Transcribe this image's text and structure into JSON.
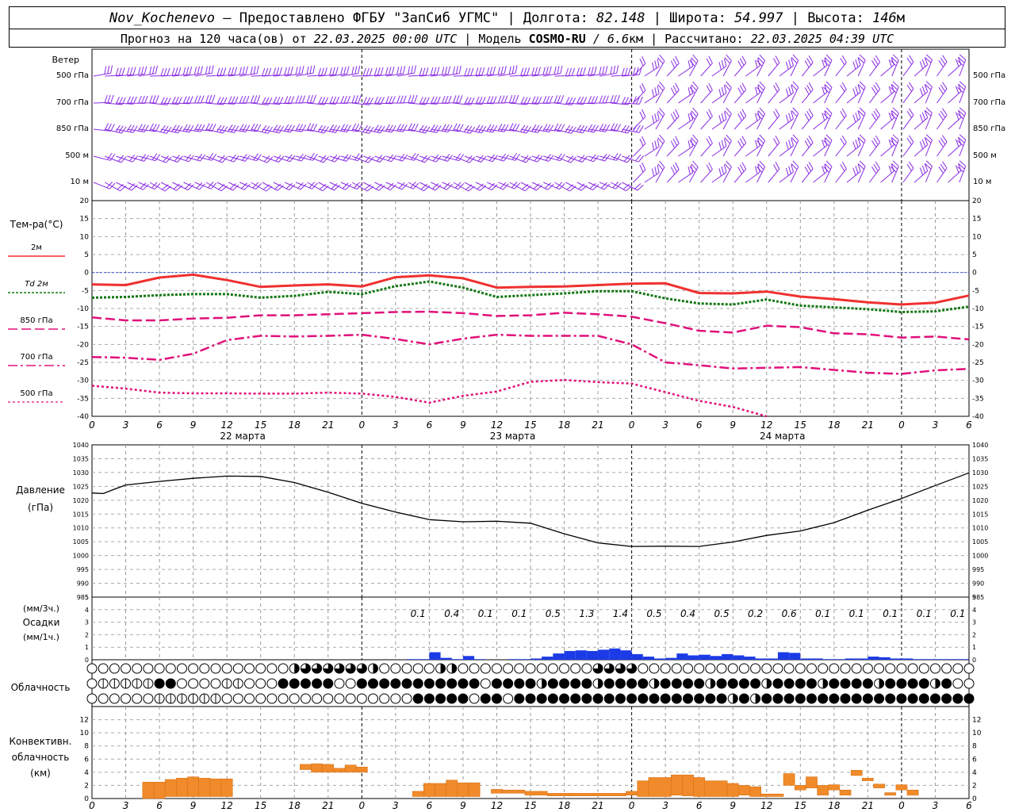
{
  "header": {
    "station": "Nov_Kochenevo",
    "provider": " – Предоставлено ФГБУ \"ЗапСиб УГМС\" | Долгота: ",
    "lon": "82.148",
    "lat_label": " | Широта: ",
    "lat": "54.997",
    "alt_label": " | Высота: ",
    "alt": "146",
    "alt_unit": "м",
    "forecast_label": "Прогноз на 120 часа(ов) от ",
    "forecast_start": "22.03.2025 00:00 UTC",
    "model_label": "  | Модель ",
    "model": "COSMO-RU",
    "model_res": " / 6.6",
    "model_unit": "км",
    "calc_label": " | Рассчитано: ",
    "calc_time": "22.03.2025 04:39 UTC"
  },
  "wind_panel": {
    "title": "Ветер",
    "levels": [
      "500 гПа",
      "700 гПа",
      "850 гПа",
      "500 м",
      "10  м"
    ]
  },
  "temp_panel": {
    "title": "Тем-ра(°С)",
    "legend": [
      {
        "label": "2м",
        "color": "#f03030"
      },
      {
        "label": "Td  2м",
        "color": "#117711"
      },
      {
        "label": "850 гПа",
        "color": "#e0107a"
      },
      {
        "label": "700 гПа",
        "color": "#e0107a"
      },
      {
        "label": "500 гПа",
        "color": "#e0107a"
      }
    ]
  },
  "pressure_panel": {
    "title1": "Давление",
    "title2": "(гПа)"
  },
  "precip_panel": {
    "title1": "(мм/3ч.)",
    "title2": "Осадки",
    "title3": "(мм/1ч.)"
  },
  "cloud_panel": {
    "title": "Облачность"
  },
  "conv_panel": {
    "title1": "Конвективн.",
    "title2": "облачность",
    "title3": "(км)"
  },
  "x_ticks": [
    "0",
    "3",
    "6",
    "9",
    "12",
    "15",
    "18",
    "21",
    "0",
    "3",
    "6",
    "9",
    "12",
    "15",
    "18",
    "21",
    "0",
    "3",
    "6",
    "9",
    "12",
    "15",
    "18",
    "21",
    "0",
    "3",
    "6"
  ],
  "dates": [
    "22 марта",
    "23 марта",
    "24 марта"
  ],
  "chart_data": [
    {
      "type": "line",
      "id": "temperature",
      "x_hours": [
        0,
        3,
        6,
        9,
        12,
        15,
        18,
        21,
        24,
        27,
        30,
        33,
        36,
        39,
        42,
        45,
        48,
        51,
        54,
        57,
        60,
        63,
        66,
        69,
        72,
        75,
        78
      ],
      "ylim": [
        -40,
        20
      ],
      "yticks": [
        -40,
        -35,
        -30,
        -25,
        -20,
        -15,
        -10,
        -5,
        0,
        5,
        10,
        15,
        20
      ],
      "series": [
        {
          "name": "2м",
          "color": "#f03030",
          "values": [
            -3.3,
            -3.5,
            -1.4,
            -0.6,
            -2.1,
            -4.0,
            -3.6,
            -3.3,
            -3.9,
            -1.3,
            -0.8,
            -1.6,
            -4.2,
            -4.0,
            -3.9,
            -3.5,
            -3.1,
            -3.0,
            -5.7,
            -5.8,
            -5.3,
            -6.7,
            -7.4,
            -8.3,
            -8.9,
            -8.4,
            -6.4
          ]
        },
        {
          "name": "Td  2м",
          "color": "#117711",
          "values": [
            -7.0,
            -6.8,
            -6.3,
            -6.0,
            -6.0,
            -7.0,
            -6.5,
            -5.4,
            -6.0,
            -3.8,
            -2.5,
            -4.2,
            -6.8,
            -6.3,
            -5.8,
            -5.2,
            -5.2,
            -7.2,
            -8.6,
            -8.9,
            -7.5,
            -9.2,
            -9.7,
            -10.2,
            -11.0,
            -10.8,
            -9.5
          ]
        },
        {
          "name": "850 гПа",
          "color": "#e0107a",
          "values": [
            -12.5,
            -13.3,
            -13.3,
            -12.8,
            -12.6,
            -11.9,
            -11.9,
            -11.6,
            -11.3,
            -11.0,
            -10.9,
            -11.3,
            -12.1,
            -11.9,
            -11.2,
            -11.6,
            -12.3,
            -14.1,
            -16.2,
            -16.7,
            -14.8,
            -15.2,
            -16.9,
            -17.2,
            -18.1,
            -17.8,
            -18.6
          ]
        },
        {
          "name": "700 гПа",
          "color": "#e0107a",
          "values": [
            -23.5,
            -23.7,
            -24.3,
            -22.6,
            -18.8,
            -17.6,
            -17.8,
            -17.6,
            -17.3,
            -18.5,
            -20.0,
            -18.4,
            -17.3,
            -17.6,
            -17.6,
            -17.6,
            -20.0,
            -25.0,
            -25.8,
            -26.7,
            -26.5,
            -26.3,
            -27.1,
            -27.9,
            -28.2,
            -27.2,
            -26.8
          ]
        },
        {
          "name": "500 гПа",
          "color": "#e0107a",
          "values": [
            -31.5,
            -32.3,
            -33.4,
            -33.6,
            -33.6,
            -33.7,
            -33.7,
            -33.4,
            -33.7,
            -34.6,
            -36.2,
            -34.3,
            -33.1,
            -30.4,
            -29.9,
            -30.5,
            -30.9,
            -33.3,
            -35.7,
            -37.4,
            -40.0,
            null,
            null,
            null,
            null,
            null,
            null
          ]
        }
      ]
    },
    {
      "type": "line",
      "id": "pressure",
      "x_hours": [
        0,
        1,
        2,
        3,
        6,
        9,
        12,
        15,
        18,
        21,
        24,
        27,
        30,
        33,
        36,
        39,
        42,
        45,
        48,
        51,
        54,
        57,
        60,
        63,
        66,
        69,
        72,
        75,
        78
      ],
      "ylim": [
        985,
        1040
      ],
      "yticks": [
        985,
        990,
        995,
        1000,
        1005,
        1010,
        1015,
        1020,
        1025,
        1030,
        1035,
        1040
      ],
      "series": [
        {
          "name": "",
          "color": "#000000",
          "values": [
            1022.6,
            1022.4,
            1024.0,
            1025.5,
            1026.8,
            1027.9,
            1028.7,
            1028.6,
            1026.4,
            1022.9,
            1018.9,
            1015.7,
            1013.0,
            1012.2,
            1012.4,
            1011.7,
            1007.9,
            1004.6,
            1003.3,
            1003.4,
            1003.3,
            1004.9,
            1007.3,
            1008.9,
            1011.9,
            1016.4,
            1020.6,
            1025.3,
            1029.9
          ]
        }
      ]
    },
    {
      "type": "bar",
      "id": "precipitation",
      "ylim": [
        0,
        5
      ],
      "yticks": [
        0,
        1,
        2,
        3,
        4,
        5
      ],
      "labels_3h": [
        "0.1",
        "0.4",
        "0.1",
        "0.1",
        "0.5",
        "1.3",
        "1.4",
        "0.5",
        "0.4",
        "0.5",
        "0.2",
        "0.6",
        "0.1",
        "0.1",
        "0.1",
        "0.1",
        "0.1"
      ],
      "labels_3h_hours": [
        29,
        32,
        35,
        38,
        41,
        44,
        47,
        50,
        53,
        56,
        59,
        62,
        65,
        68,
        71,
        74,
        77
      ],
      "hourly_x": [
        29,
        30,
        31,
        32,
        33,
        34,
        35,
        36,
        37,
        38,
        39,
        40,
        41,
        42,
        43,
        44,
        45,
        46,
        47,
        48,
        49,
        50,
        51,
        52,
        53,
        54,
        55,
        56,
        57,
        58,
        59,
        60,
        61,
        62,
        63,
        64,
        65,
        66,
        67,
        68,
        69,
        70,
        71,
        72,
        73,
        74,
        75,
        76,
        77,
        78
      ],
      "hourly_values": [
        0.05,
        0.05,
        0.6,
        0.15,
        0.05,
        0.3,
        0.05,
        0.0,
        0.0,
        0.05,
        0.05,
        0.1,
        0.25,
        0.5,
        0.7,
        0.75,
        0.7,
        0.8,
        0.9,
        0.75,
        0.45,
        0.25,
        0.1,
        0.15,
        0.5,
        0.35,
        0.4,
        0.3,
        0.45,
        0.35,
        0.25,
        0.1,
        0.1,
        0.6,
        0.55,
        0.1,
        0.1,
        0.05,
        0.05,
        0.1,
        0.1,
        0.25,
        0.2,
        0.1,
        0.1,
        0.05,
        0.05,
        0.05,
        0.05,
        0.05
      ]
    },
    {
      "type": "bar",
      "id": "convective_cloud",
      "ylim": [
        0,
        14
      ],
      "yticks": [
        0,
        2,
        4,
        6,
        8,
        10,
        12
      ],
      "segments": [
        {
          "x0": 4.5,
          "x1": 5.5,
          "base": 0,
          "top": 2.5
        },
        {
          "x0": 5.5,
          "x1": 6.5,
          "base": 0,
          "top": 2.5
        },
        {
          "x0": 6.5,
          "x1": 7.5,
          "base": 0.3,
          "top": 2.9
        },
        {
          "x0": 7.5,
          "x1": 8.5,
          "base": 0.3,
          "top": 3.1
        },
        {
          "x0": 8.5,
          "x1": 9.5,
          "base": 0.3,
          "top": 3.3
        },
        {
          "x0": 9.5,
          "x1": 10.5,
          "base": 0.3,
          "top": 3.1
        },
        {
          "x0": 10.5,
          "x1": 11.5,
          "base": 0.3,
          "top": 3.0
        },
        {
          "x0": 11.5,
          "x1": 12.5,
          "base": 0.3,
          "top": 3.0
        },
        {
          "x0": 18.5,
          "x1": 19.5,
          "base": 4.4,
          "top": 5.2
        },
        {
          "x0": 19.5,
          "x1": 20.5,
          "base": 4.0,
          "top": 5.3
        },
        {
          "x0": 20.5,
          "x1": 21.5,
          "base": 4.0,
          "top": 5.2
        },
        {
          "x0": 21.5,
          "x1": 22.5,
          "base": 4.0,
          "top": 4.6
        },
        {
          "x0": 22.5,
          "x1": 23.5,
          "base": 4.0,
          "top": 5.1
        },
        {
          "x0": 23.5,
          "x1": 24.5,
          "base": 4.0,
          "top": 4.8
        },
        {
          "x0": 28.5,
          "x1": 29.5,
          "base": 0.3,
          "top": 1.1
        },
        {
          "x0": 29.5,
          "x1": 30.5,
          "base": 0.3,
          "top": 2.3
        },
        {
          "x0": 30.5,
          "x1": 31.5,
          "base": 0.3,
          "top": 2.3
        },
        {
          "x0": 31.5,
          "x1": 32.5,
          "base": 0.3,
          "top": 2.8
        },
        {
          "x0": 32.5,
          "x1": 33.5,
          "base": 0.3,
          "top": 2.4
        },
        {
          "x0": 33.5,
          "x1": 34.5,
          "base": 0.3,
          "top": 2.4
        },
        {
          "x0": 35.5,
          "x1": 36.5,
          "base": 0.8,
          "top": 1.4
        },
        {
          "x0": 36.5,
          "x1": 38.5,
          "base": 0.8,
          "top": 1.3
        },
        {
          "x0": 38.5,
          "x1": 40.5,
          "base": 0.5,
          "top": 1.1
        },
        {
          "x0": 40.5,
          "x1": 42.5,
          "base": 0.4,
          "top": 0.8
        },
        {
          "x0": 42.5,
          "x1": 47.5,
          "base": 0.4,
          "top": 0.8
        },
        {
          "x0": 47.5,
          "x1": 48.5,
          "base": 0.5,
          "top": 1.1
        },
        {
          "x0": 48.5,
          "x1": 49.5,
          "base": 0.3,
          "top": 2.7
        },
        {
          "x0": 49.5,
          "x1": 51.5,
          "base": 0.3,
          "top": 3.2
        },
        {
          "x0": 51.5,
          "x1": 52.5,
          "base": 0.5,
          "top": 3.6
        },
        {
          "x0": 52.5,
          "x1": 53.5,
          "base": 0.4,
          "top": 3.6
        },
        {
          "x0": 53.5,
          "x1": 54.5,
          "base": 0.3,
          "top": 3.2
        },
        {
          "x0": 54.5,
          "x1": 56.5,
          "base": 0.3,
          "top": 2.7
        },
        {
          "x0": 56.5,
          "x1": 57.5,
          "base": 0.3,
          "top": 2.3
        },
        {
          "x0": 57.5,
          "x1": 58.5,
          "base": 0.5,
          "top": 2.0
        },
        {
          "x0": 58.5,
          "x1": 59.5,
          "base": 0.3,
          "top": 1.8
        },
        {
          "x0": 59.5,
          "x1": 61.5,
          "base": 0.3,
          "top": 0.7
        },
        {
          "x0": 61.5,
          "x1": 62.5,
          "base": 2.0,
          "top": 3.8
        },
        {
          "x0": 62.5,
          "x1": 63.5,
          "base": 1.3,
          "top": 2.0
        },
        {
          "x0": 63.5,
          "x1": 64.5,
          "base": 1.6,
          "top": 3.3
        },
        {
          "x0": 64.5,
          "x1": 65.5,
          "base": 0.5,
          "top": 2.0
        },
        {
          "x0": 65.5,
          "x1": 66.5,
          "base": 1.3,
          "top": 2.1
        },
        {
          "x0": 66.5,
          "x1": 67.5,
          "base": 0.5,
          "top": 1.3
        },
        {
          "x0": 67.5,
          "x1": 68.5,
          "base": 3.5,
          "top": 4.3
        },
        {
          "x0": 68.5,
          "x1": 69.5,
          "base": 2.7,
          "top": 3.1
        },
        {
          "x0": 69.5,
          "x1": 70.5,
          "base": 1.6,
          "top": 2.2
        },
        {
          "x0": 70.5,
          "x1": 71.5,
          "base": 0.5,
          "top": 0.9
        },
        {
          "x0": 71.5,
          "x1": 72.5,
          "base": 1.3,
          "top": 2.1
        },
        {
          "x0": 72.5,
          "x1": 73.5,
          "base": 0.5,
          "top": 1.3
        }
      ]
    }
  ]
}
